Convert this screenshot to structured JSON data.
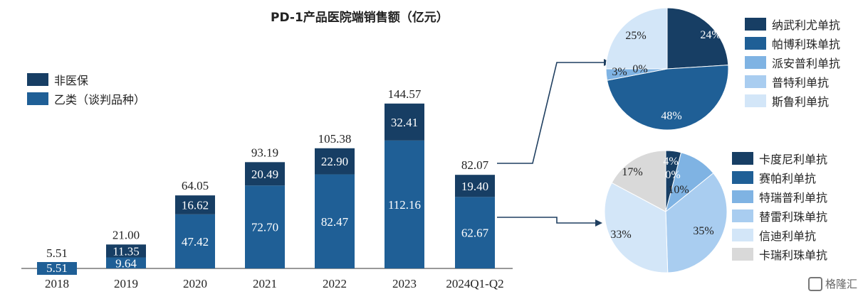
{
  "chart_data": [
    {
      "type": "bar",
      "stacked": true,
      "title": "PD-1产品医院端销售额（亿元）",
      "categories": [
        "2018",
        "2019",
        "2020",
        "2021",
        "2022",
        "2023",
        "2024Q1-Q2"
      ],
      "series": [
        {
          "name": "乙类（谈判品种）",
          "color": "#1f5f96",
          "values": [
            5.51,
            9.64,
            47.42,
            72.7,
            82.47,
            112.16,
            62.67
          ],
          "labels": [
            "5.51",
            "9.64",
            "47.42",
            "72.70",
            "82.47",
            "112.16",
            "62.67"
          ]
        },
        {
          "name": "非医保",
          "color": "#173e64",
          "values": [
            0,
            11.35,
            16.62,
            20.49,
            22.9,
            32.41,
            19.4
          ],
          "labels": [
            "",
            "11.35",
            "16.62",
            "20.49",
            "22.90",
            "32.41",
            "19.40"
          ]
        }
      ],
      "totals": [
        5.51,
        21.0,
        64.05,
        93.19,
        105.38,
        144.57,
        82.07
      ],
      "total_labels": [
        "5.51",
        "21.00",
        "64.05",
        "93.19",
        "105.38",
        "144.57",
        "82.07"
      ],
      "ylim": [
        0,
        155
      ],
      "legend_position": "top-left",
      "grid": false
    },
    {
      "type": "pie",
      "labels": [
        "纳武利尤单抗",
        "帕博利珠单抗",
        "派安普利单抗",
        "普特利单抗",
        "斯鲁利单抗"
      ],
      "values": [
        24,
        48,
        3,
        0,
        25
      ],
      "value_labels": [
        "24%",
        "48%",
        "3%",
        "0%",
        "25%"
      ],
      "colors": [
        "#173e64",
        "#1f5f96",
        "#7fb3e3",
        "#a9cdf0",
        "#d3e6f8"
      ],
      "legend_position": "right"
    },
    {
      "type": "pie",
      "labels": [
        "卡度尼利单抗",
        "赛帕利单抗",
        "特瑞普利单抗",
        "替雷利珠单抗",
        "信迪利单抗",
        "卡瑞利珠单抗"
      ],
      "values": [
        4,
        0,
        10,
        35,
        33,
        17
      ],
      "value_labels": [
        "4%",
        "0%",
        "10%",
        "35%",
        "33%",
        "17%"
      ],
      "colors": [
        "#173e64",
        "#1f5f96",
        "#7fb3e3",
        "#a9cdf0",
        "#d3e6f8",
        "#d9d9d9"
      ],
      "legend_position": "right"
    }
  ],
  "watermark": {
    "text": "格隆汇"
  }
}
